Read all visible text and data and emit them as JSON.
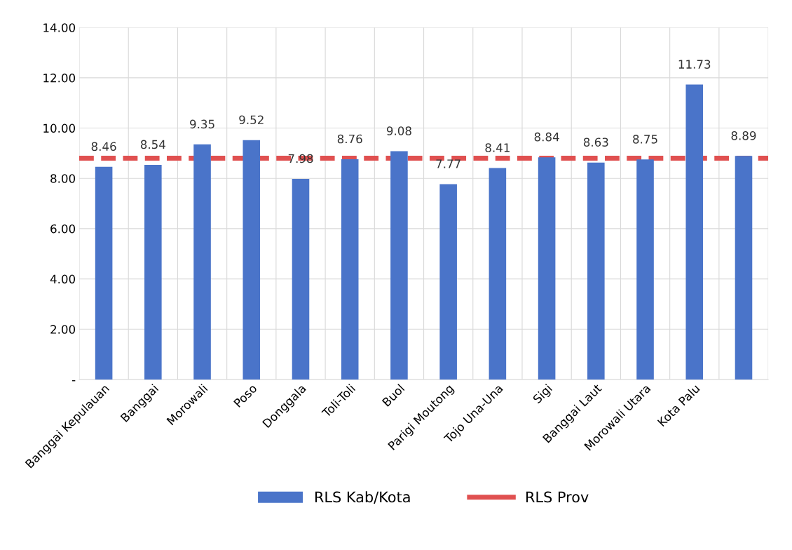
{
  "chart_data": {
    "type": "bar",
    "categories": [
      "Banggai Kepulauan",
      "Banggai",
      "Morowali",
      "Poso",
      "Donggala",
      "Toli-Toli",
      "Buol",
      "Parigi Moutong",
      "Tojo Una-Una",
      "Sigi",
      "Banggai Laut",
      "Morowali Utara",
      "Kota Palu",
      null
    ],
    "series": [
      {
        "name": "RLS Kab/Kota",
        "color": "#4a74c9",
        "values": [
          8.46,
          8.54,
          9.35,
          9.52,
          7.98,
          8.76,
          9.08,
          7.77,
          8.41,
          8.84,
          8.63,
          8.75,
          11.73,
          8.89
        ]
      }
    ],
    "value_labels": [
      "8.46",
      "8.54",
      "9.35",
      "9.52",
      "7.98",
      "8.76",
      "9.08",
      "7.77",
      "8.41",
      "8.84",
      "8.63",
      "8.75",
      "11.73",
      "8.89"
    ],
    "ref_lines": [
      {
        "axis": "y",
        "value": 8.8,
        "label": "RLS Prov",
        "color": "#e05050",
        "line_style": "dashed"
      }
    ],
    "ylim": [
      0,
      14
    ],
    "yticks": [
      {
        "value": 0,
        "label": "-"
      },
      {
        "value": 2,
        "label": "2.00"
      },
      {
        "value": 4,
        "label": "4.00"
      },
      {
        "value": 6,
        "label": "6.00"
      },
      {
        "value": 8,
        "label": "8.00"
      },
      {
        "value": 10,
        "label": "10.00"
      },
      {
        "value": 12,
        "label": "12.00"
      },
      {
        "value": 14,
        "label": "14.00"
      }
    ],
    "grid": true,
    "legend": "bottom"
  }
}
